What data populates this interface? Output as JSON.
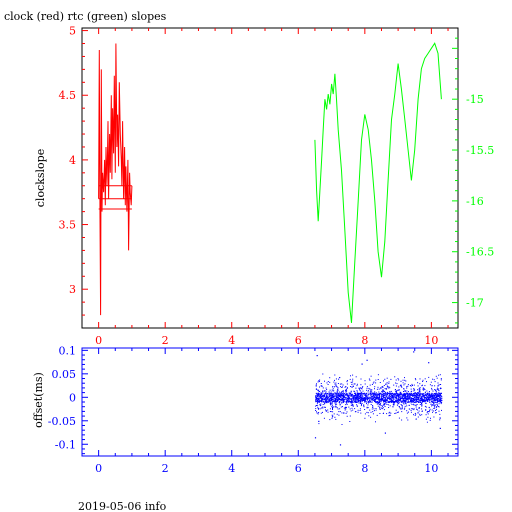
{
  "title": "clock (red) rtc (green) slopes",
  "footer": "2019-05-06 info",
  "colors": {
    "clock": "#ff0000",
    "rtc": "#00ff00",
    "offset": "#0000ff",
    "frame": "#000000"
  },
  "chart_data": [
    {
      "type": "line",
      "name": "slopes",
      "title": "clock (red) rtc (green) slopes",
      "ylabel": "clockslope",
      "xlim": [
        -0.5,
        10.8
      ],
      "ylim_left": [
        2.7,
        5.02
      ],
      "ylim_right": [
        -17.25,
        -14.3
      ],
      "x_ticks": [
        "0",
        "2",
        "4",
        "6",
        "8",
        "10"
      ],
      "y_ticks_left": [
        "3",
        "3.5",
        "4",
        "4.5",
        "5"
      ],
      "y_ticks_right": [
        "-17",
        "-16.5",
        "-16",
        "-15.5",
        "-15"
      ],
      "grid": false,
      "series": [
        {
          "name": "clock",
          "axis": "left",
          "color": "#ff0000",
          "x": [
            0.0,
            0.02,
            0.04,
            0.06,
            0.08,
            0.1,
            0.12,
            0.15,
            0.18,
            0.2,
            0.22,
            0.25,
            0.28,
            0.3,
            0.33,
            0.35,
            0.38,
            0.4,
            0.42,
            0.45,
            0.47,
            0.5,
            0.52,
            0.55,
            0.57,
            0.6,
            0.62,
            0.65,
            0.68,
            0.7,
            0.72,
            0.75,
            0.78,
            0.8,
            0.82,
            0.85,
            0.88,
            0.9,
            0.93,
            0.95,
            0.98,
            1.0
          ],
          "y": [
            3.7,
            4.85,
            3.55,
            2.8,
            4.7,
            3.6,
            3.9,
            3.75,
            4.0,
            3.65,
            4.1,
            3.8,
            4.3,
            3.7,
            4.2,
            3.9,
            4.5,
            3.85,
            4.4,
            4.05,
            4.65,
            3.9,
            4.9,
            4.1,
            4.35,
            3.95,
            4.6,
            4.2,
            4.0,
            3.8,
            4.3,
            3.7,
            4.1,
            3.65,
            3.95,
            3.6,
            4.0,
            3.3,
            3.9,
            3.75,
            3.65,
            3.8
          ]
        },
        {
          "name": "rtc",
          "axis": "right",
          "color": "#00ff00",
          "x": [
            6.5,
            6.55,
            6.6,
            6.65,
            6.7,
            6.75,
            6.8,
            6.85,
            6.9,
            6.95,
            7.0,
            7.05,
            7.1,
            7.15,
            7.2,
            7.3,
            7.4,
            7.5,
            7.6,
            7.7,
            7.8,
            7.9,
            8.0,
            8.1,
            8.2,
            8.3,
            8.4,
            8.5,
            8.6,
            8.7,
            8.8,
            8.9,
            9.0,
            9.1,
            9.2,
            9.3,
            9.4,
            9.5,
            9.6,
            9.7,
            9.8,
            9.9,
            10.0,
            10.1,
            10.2,
            10.3
          ],
          "y": [
            -15.4,
            -15.9,
            -16.2,
            -15.9,
            -15.6,
            -15.3,
            -15.0,
            -15.1,
            -14.95,
            -15.05,
            -14.85,
            -14.95,
            -14.75,
            -15.0,
            -15.3,
            -15.7,
            -16.3,
            -16.9,
            -17.2,
            -16.6,
            -16.0,
            -15.4,
            -15.15,
            -15.3,
            -15.6,
            -16.0,
            -16.5,
            -16.75,
            -16.4,
            -15.8,
            -15.2,
            -14.95,
            -14.65,
            -14.9,
            -15.2,
            -15.5,
            -15.8,
            -15.5,
            -15.0,
            -14.7,
            -14.6,
            -14.55,
            -14.5,
            -14.45,
            -14.55,
            -15.0
          ]
        }
      ]
    },
    {
      "type": "scatter",
      "name": "offset",
      "ylabel": "offset(ms)",
      "xlim": [
        -0.5,
        10.8
      ],
      "ylim": [
        -0.125,
        0.105
      ],
      "x_ticks": [
        "0",
        "2",
        "4",
        "6",
        "8",
        "10"
      ],
      "y_ticks": [
        "-0.1",
        "-0.05",
        "0",
        "0.05",
        "0.1"
      ],
      "grid": false,
      "series": [
        {
          "name": "offset",
          "color": "#0000ff",
          "x_range": [
            6.5,
            10.3
          ],
          "core_band": [
            -0.01,
            0.01
          ],
          "spread_band": [
            -0.06,
            0.06
          ],
          "outliers": [
            [
              6.5,
              -0.085
            ],
            [
              6.55,
              0.09
            ],
            [
              6.6,
              -0.05
            ],
            [
              8.05,
              0.08
            ],
            [
              9.45,
              0.098
            ],
            [
              7.25,
              -0.1
            ],
            [
              9.9,
              0.075
            ],
            [
              8.6,
              -0.075
            ],
            [
              7.9,
              0.072
            ],
            [
              10.25,
              -0.065
            ]
          ]
        }
      ]
    }
  ]
}
